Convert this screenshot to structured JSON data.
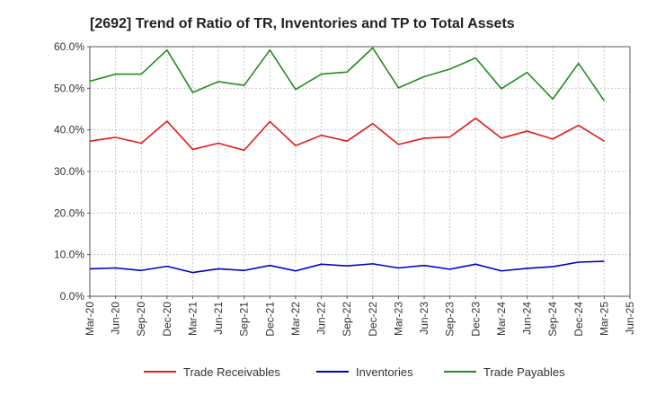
{
  "chart_data": {
    "type": "line",
    "title": "[2692]  Trend of Ratio of TR, Inventories and TP to Total Assets",
    "xlabel": "",
    "ylabel": "",
    "ylim": [
      0,
      60
    ],
    "yticks": [
      "0.0%",
      "10.0%",
      "20.0%",
      "30.0%",
      "40.0%",
      "50.0%",
      "60.0%"
    ],
    "ytick_values": [
      0,
      10,
      20,
      30,
      40,
      50,
      60
    ],
    "xlim": [
      "Mar-20",
      "Jun-25"
    ],
    "xticks": [
      "Mar-20",
      "Jun-20",
      "Sep-20",
      "Dec-20",
      "Mar-21",
      "Jun-21",
      "Sep-21",
      "Dec-21",
      "Mar-22",
      "Jun-22",
      "Sep-22",
      "Dec-22",
      "Mar-23",
      "Jun-23",
      "Sep-23",
      "Dec-23",
      "Mar-24",
      "Jun-24",
      "Sep-24",
      "Dec-24",
      "Mar-25",
      "Jun-25"
    ],
    "x": [
      "Mar-20",
      "Jun-20",
      "Sep-20",
      "Dec-20",
      "Mar-21",
      "Jun-21",
      "Sep-21",
      "Dec-21",
      "Mar-22",
      "Jun-22",
      "Sep-22",
      "Dec-22",
      "Mar-23",
      "Jun-23",
      "Sep-23",
      "Dec-23",
      "Mar-24",
      "Jun-24",
      "Sep-24",
      "Dec-24",
      "Mar-25"
    ],
    "grid": true,
    "legend_position": "bottom",
    "series": [
      {
        "name": "Trade Receivables",
        "color": "#e31a1c",
        "values": [
          37.3,
          38.2,
          36.8,
          42.1,
          35.3,
          36.8,
          35.1,
          42.0,
          36.2,
          38.7,
          37.3,
          41.5,
          36.5,
          38.0,
          38.3,
          42.8,
          38.0,
          39.7,
          37.8,
          41.1,
          37.3
        ]
      },
      {
        "name": "Inventories",
        "color": "#0000cc",
        "values": [
          6.6,
          6.8,
          6.2,
          7.2,
          5.7,
          6.6,
          6.2,
          7.4,
          6.1,
          7.7,
          7.3,
          7.8,
          6.8,
          7.4,
          6.5,
          7.7,
          6.1,
          6.7,
          7.1,
          8.2,
          8.4
        ]
      },
      {
        "name": "Trade Payables",
        "color": "#228b22",
        "values": [
          51.7,
          53.4,
          53.4,
          59.2,
          49.0,
          51.6,
          50.7,
          59.2,
          49.7,
          53.4,
          53.9,
          59.7,
          50.1,
          52.8,
          54.6,
          57.3,
          49.9,
          53.8,
          47.4,
          56.0,
          47.0
        ]
      }
    ]
  }
}
